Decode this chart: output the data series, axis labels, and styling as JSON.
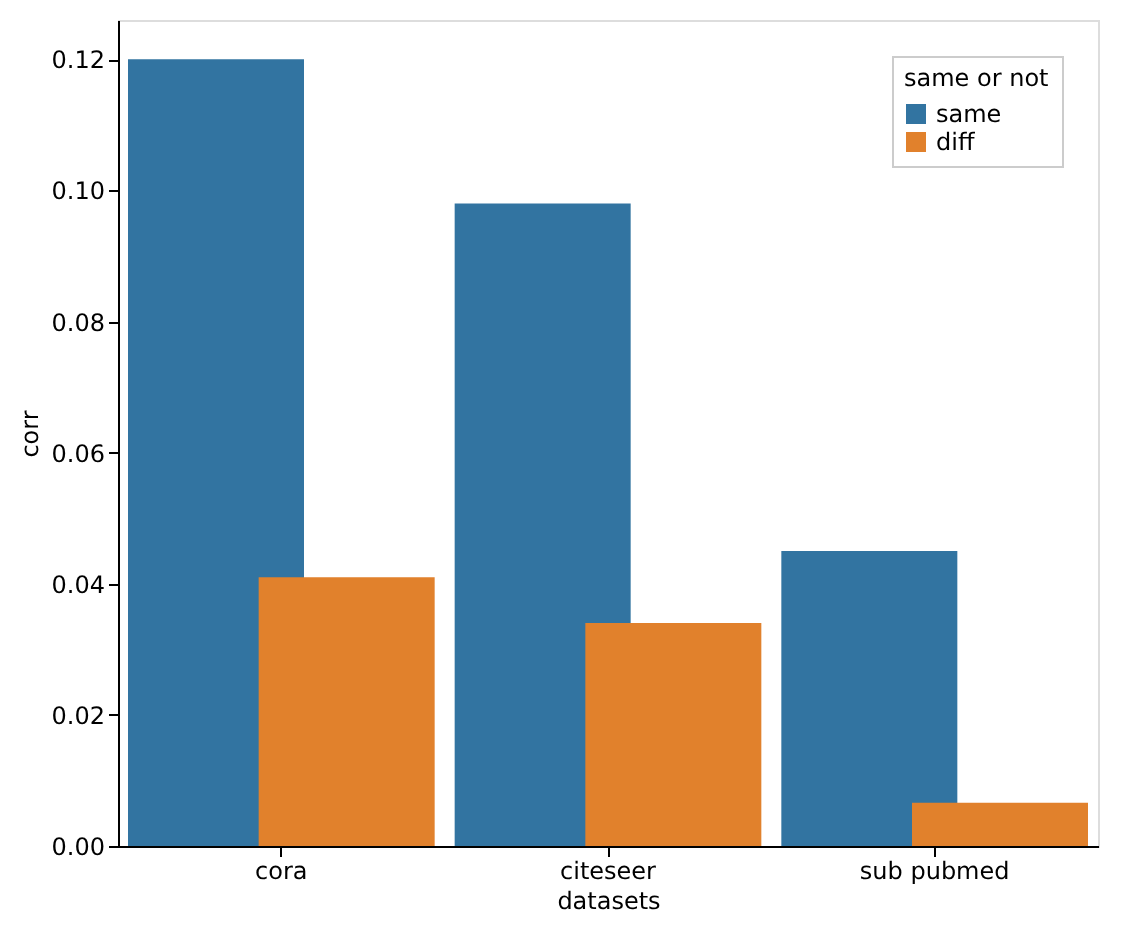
{
  "chart_data": {
    "type": "bar",
    "xlabel": "datasets",
    "ylabel": "corr",
    "legend_title": "same or not",
    "legend": "top right",
    "grid": false,
    "categories": [
      "cora",
      "citeseer",
      "sub pubmed"
    ],
    "series": [
      {
        "name": "same",
        "color": "#3274a1",
        "values": [
          0.12,
          0.098,
          0.045
        ]
      },
      {
        "name": "diff",
        "color": "#e1812c",
        "values": [
          0.041,
          0.034,
          0.0066
        ]
      }
    ],
    "ylim": [
      0,
      0.126
    ],
    "yticks": [
      {
        "value": 0,
        "label": "0.00"
      },
      {
        "value": 0.02,
        "label": "0.02"
      },
      {
        "value": 0.04,
        "label": "0.04"
      },
      {
        "value": 0.06,
        "label": "0.06"
      },
      {
        "value": 0.08,
        "label": "0.08"
      },
      {
        "value": 0.1,
        "label": "0.10"
      },
      {
        "value": 0.12,
        "label": "0.12"
      }
    ]
  }
}
